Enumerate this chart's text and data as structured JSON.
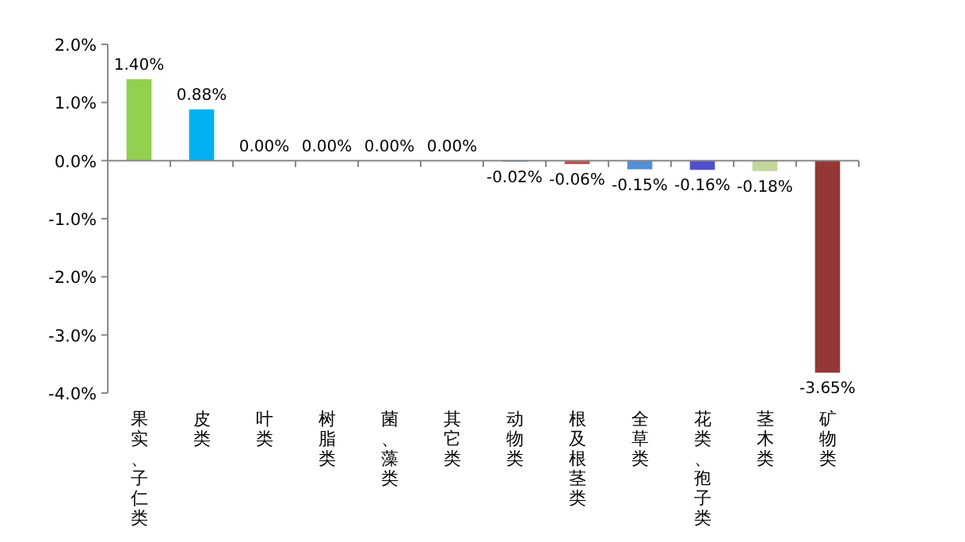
{
  "chart_data": {
    "type": "bar",
    "categories": [
      "果实、子仁类",
      "皮类",
      "叶类",
      "树脂类",
      "菌、藻类",
      "其它类",
      "动物类",
      "根及根茎类",
      "全草类",
      "花类、孢子类",
      "茎木类",
      "矿物类"
    ],
    "values": [
      1.4,
      0.88,
      0,
      0,
      0,
      0,
      -0.02,
      -0.06,
      -0.15,
      -0.16,
      -0.18,
      -3.65
    ],
    "value_labels": [
      "1.40%",
      "0.88%",
      "0.00%",
      "0.00%",
      "0.00%",
      "0.00%",
      "-0.02%",
      "-0.06%",
      "-0.15%",
      "-0.16%",
      "-0.18%",
      "-3.65%"
    ],
    "colors": [
      "#92d050",
      "#00b0f0",
      "#4f81bd",
      "#4f81bd",
      "#4f81bd",
      "#4f81bd",
      "#4f81bd",
      "#c0504d",
      "#558ed5",
      "#5050d0",
      "#c3d69b",
      "#953735"
    ],
    "ylim": [
      -4,
      2
    ],
    "yticks": [
      {
        "value": 2,
        "label": "2.0%"
      },
      {
        "value": 1,
        "label": "1.0%"
      },
      {
        "value": 0,
        "label": "0.0%"
      },
      {
        "value": -1,
        "label": "-1.0%"
      },
      {
        "value": -2,
        "label": "-2.0%"
      },
      {
        "value": -3,
        "label": "-3.0%"
      },
      {
        "value": -4,
        "label": "-4.0%"
      }
    ]
  }
}
